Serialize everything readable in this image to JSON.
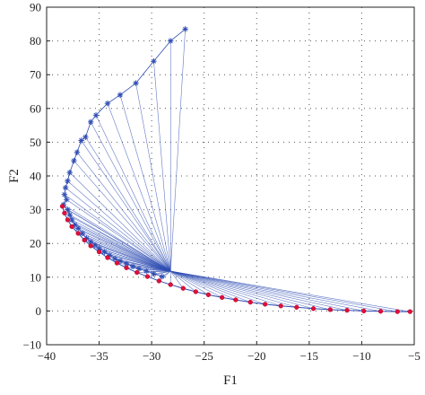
{
  "chart_data": {
    "type": "scatter",
    "title": "",
    "xlabel": "F1",
    "ylabel": "F2",
    "xlim": [
      -40,
      -5
    ],
    "ylim": [
      -10,
      90
    ],
    "xticks": [
      "−40",
      "−35",
      "−30",
      "−25",
      "−20",
      "−15",
      "−10",
      "−5"
    ],
    "yticks": [
      "−10",
      "0",
      "10",
      "20",
      "30",
      "40",
      "50",
      "60",
      "70",
      "80",
      "90"
    ],
    "grid": true,
    "series": [
      {
        "role": "initial points",
        "marker": "asterisk",
        "color": "#2f4db3",
        "points": [
          [
            -26.8,
            83.5
          ],
          [
            -28.2,
            80.0
          ],
          [
            -29.8,
            74.0
          ],
          [
            -31.5,
            67.5
          ],
          [
            -33.0,
            64.0
          ],
          [
            -34.2,
            61.5
          ],
          [
            -35.3,
            58.0
          ],
          [
            -35.8,
            56.0
          ],
          [
            -36.3,
            51.5
          ],
          [
            -36.7,
            50.5
          ],
          [
            -37.1,
            47.0
          ],
          [
            -37.4,
            44.5
          ],
          [
            -37.8,
            41.0
          ],
          [
            -38.0,
            38.5
          ],
          [
            -38.2,
            36.5
          ],
          [
            -38.3,
            34.5
          ],
          [
            -38.1,
            33.0
          ],
          [
            -38.4,
            31.5
          ],
          [
            -38.0,
            30.0
          ],
          [
            -37.8,
            28.5
          ],
          [
            -37.6,
            27.0
          ],
          [
            -37.3,
            25.5
          ],
          [
            -37.0,
            24.5
          ],
          [
            -36.6,
            23.0
          ],
          [
            -36.2,
            21.5
          ],
          [
            -35.8,
            20.5
          ],
          [
            -35.4,
            19.5
          ],
          [
            -35.0,
            18.5
          ],
          [
            -34.5,
            17.5
          ],
          [
            -34.0,
            16.5
          ],
          [
            -33.5,
            15.5
          ],
          [
            -33.0,
            14.8
          ],
          [
            -32.4,
            14.0
          ],
          [
            -31.8,
            13.2
          ],
          [
            -31.2,
            12.5
          ],
          [
            -30.5,
            11.8
          ],
          [
            -29.8,
            11.0
          ],
          [
            -29.0,
            10.2
          ]
        ]
      },
      {
        "role": "pareto front",
        "marker": "dot",
        "color": "#e0103a",
        "points": [
          [
            -38.5,
            31.0
          ],
          [
            -38.3,
            29.0
          ],
          [
            -38.0,
            27.0
          ],
          [
            -37.6,
            25.0
          ],
          [
            -37.0,
            23.0
          ],
          [
            -36.4,
            21.0
          ],
          [
            -35.8,
            19.3
          ],
          [
            -35.0,
            17.5
          ],
          [
            -34.2,
            15.8
          ],
          [
            -33.3,
            14.2
          ],
          [
            -32.4,
            12.8
          ],
          [
            -31.4,
            11.4
          ],
          [
            -30.4,
            10.2
          ],
          [
            -29.3,
            8.9
          ],
          [
            -28.2,
            7.8
          ],
          [
            -27.0,
            6.7
          ],
          [
            -25.8,
            5.7
          ],
          [
            -24.6,
            4.8
          ],
          [
            -23.3,
            4.0
          ],
          [
            -22.0,
            3.3
          ],
          [
            -20.6,
            2.6
          ],
          [
            -19.2,
            2.0
          ],
          [
            -17.7,
            1.5
          ],
          [
            -16.2,
            1.1
          ],
          [
            -14.6,
            0.7
          ],
          [
            -13.0,
            0.4
          ],
          [
            -11.4,
            0.2
          ],
          [
            -9.8,
            0.0
          ],
          [
            -8.2,
            -0.1
          ],
          [
            -6.6,
            -0.2
          ],
          [
            -5.4,
            -0.2
          ]
        ]
      }
    ],
    "convergence_point": [
      -28.2,
      11.8
    ]
  }
}
